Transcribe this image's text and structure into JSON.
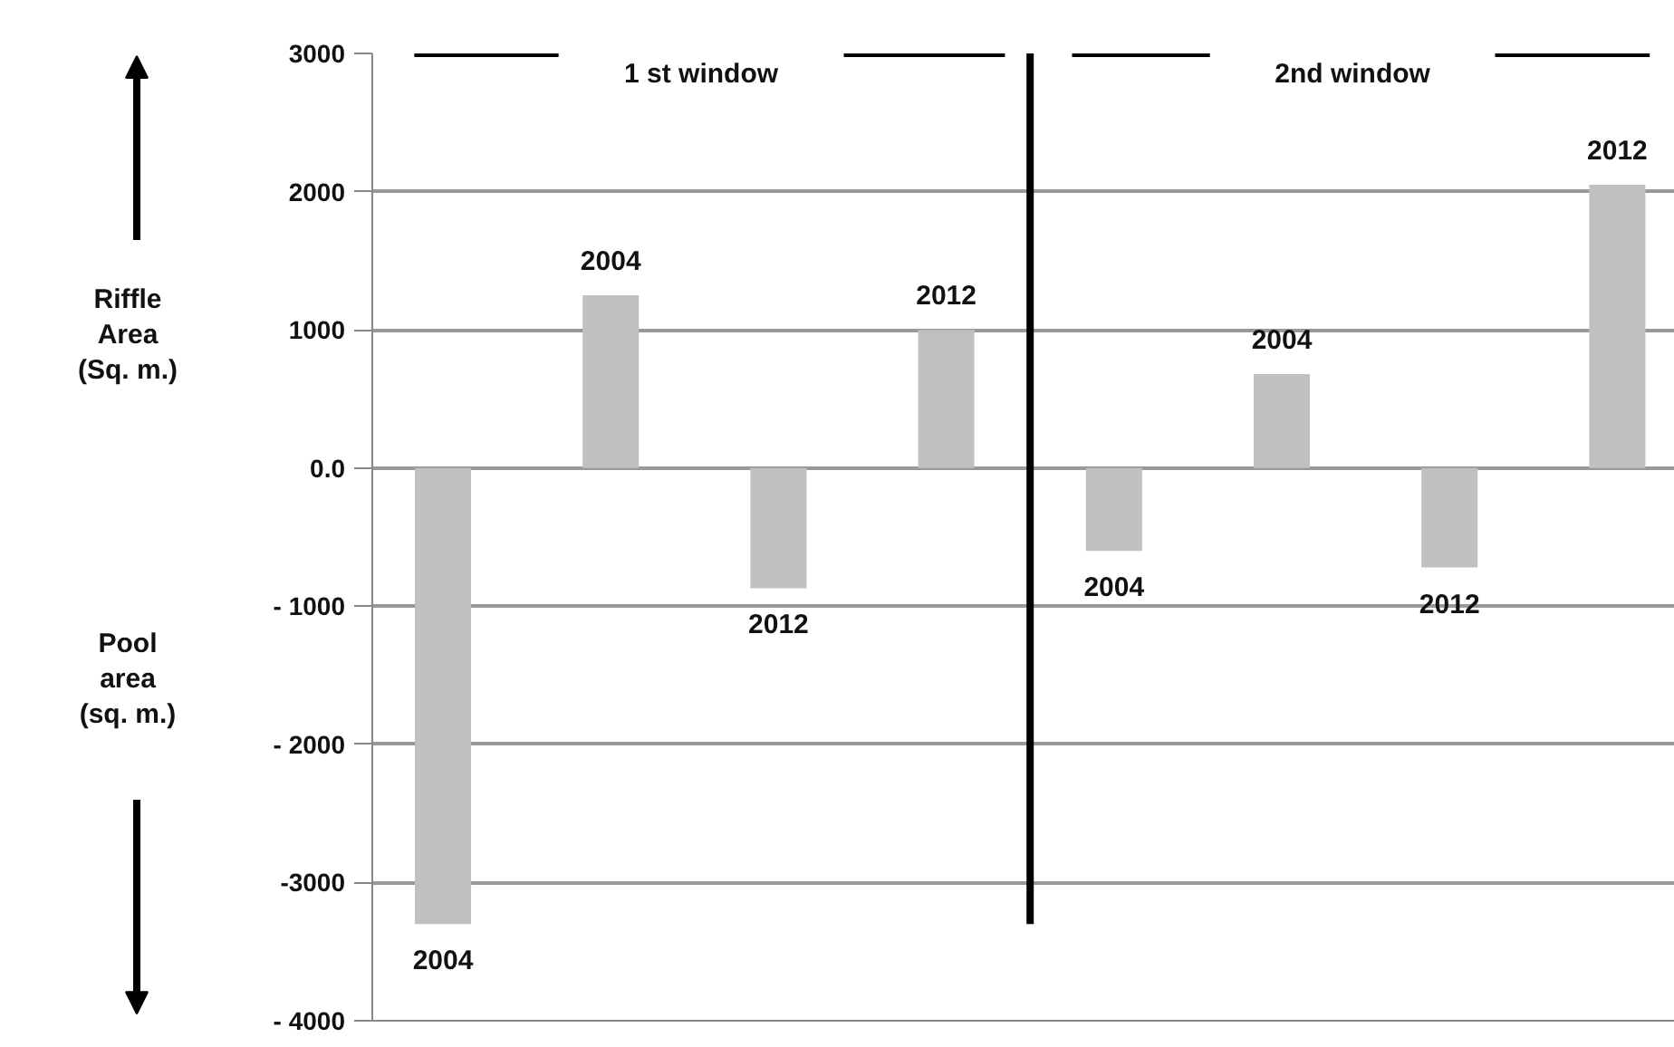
{
  "chart_data": {
    "type": "bar",
    "categories": [
      null,
      null,
      null,
      null,
      null,
      null,
      null,
      null
    ],
    "values": [
      -3300,
      1250,
      -870,
      1000,
      -600,
      680,
      -720,
      2050
    ],
    "color": "#c0c0c0",
    "ylim": [
      -4000,
      3000
    ],
    "yticks": [
      3000,
      2000,
      1000,
      {
        "value": 0,
        "label": "0.0"
      },
      {
        "value": -1000,
        "label": "- 1000"
      },
      {
        "value": -2000,
        "label": "- 2000"
      },
      {
        "value": -3000,
        "label": "-3000"
      },
      {
        "value": -4000,
        "label": "- 4000"
      }
    ],
    "tick_labels": "y",
    "grid": "y",
    "ref_lines": [
      {
        "axis": "y",
        "value": 3000,
        "color": "#000000"
      }
    ],
    "annotations": [
      "Riffle\nArea\n(Sq. m.)",
      "Pool\narea\n(sq. m.)",
      "1 st window",
      "2nd window",
      "2004",
      "2004",
      "2012",
      "2012",
      "2004",
      "2004",
      "2012",
      "2012"
    ]
  }
}
